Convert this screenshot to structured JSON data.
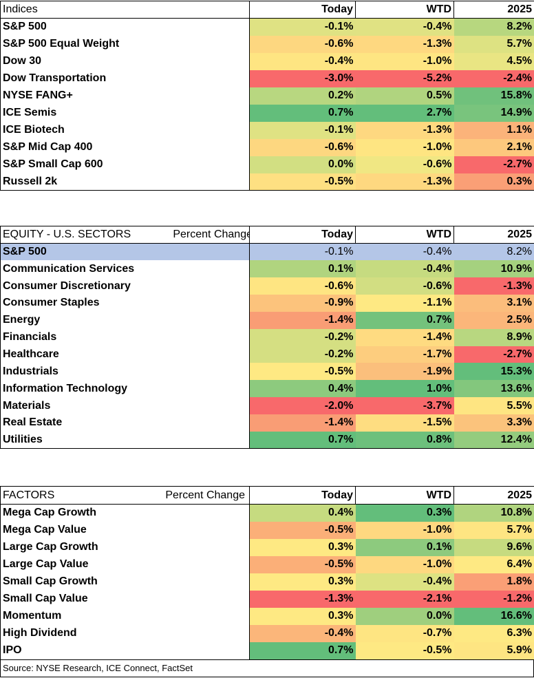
{
  "indices": {
    "header": {
      "label": "Indices",
      "today": "Today",
      "wtd": "WTD",
      "ytd": "2025"
    },
    "rows": [
      {
        "name": "S&P 500",
        "today": "-0.1%",
        "wtd": "-0.4%",
        "ytd": "8.2%",
        "c": [
          "#dfe283",
          "#e0e283",
          "#b7d77f"
        ]
      },
      {
        "name": "S&P 500 Equal Weight",
        "today": "-0.6%",
        "wtd": "-1.3%",
        "ytd": "5.7%",
        "c": [
          "#fdd780",
          "#fed880",
          "#dde282"
        ]
      },
      {
        "name": "Dow 30",
        "today": "-0.4%",
        "wtd": "-1.0%",
        "ytd": "4.5%",
        "c": [
          "#fee582",
          "#fee582",
          "#e9e583"
        ]
      },
      {
        "name": "Dow Transportation",
        "today": "-3.0%",
        "wtd": "-5.2%",
        "ytd": "-2.4%",
        "c": [
          "#f8696b",
          "#f8696b",
          "#f8696b"
        ]
      },
      {
        "name": "NYSE FANG+",
        "today": "0.2%",
        "wtd": "0.5%",
        "ytd": "15.8%",
        "c": [
          "#b8d780",
          "#b0d47f",
          "#70c17c"
        ]
      },
      {
        "name": "ICE Semis",
        "today": "0.7%",
        "wtd": "2.7%",
        "ytd": "14.9%",
        "c": [
          "#63be7b",
          "#63be7b",
          "#79c47d"
        ]
      },
      {
        "name": "ICE Biotech",
        "today": "-0.1%",
        "wtd": "-1.3%",
        "ytd": "1.1%",
        "c": [
          "#dfe283",
          "#fed880",
          "#fbb37a"
        ]
      },
      {
        "name": "S&P Mid Cap 400",
        "today": "-0.6%",
        "wtd": "-1.0%",
        "ytd": "2.1%",
        "c": [
          "#fdd780",
          "#fee582",
          "#fdc87d"
        ]
      },
      {
        "name": "S&P Small Cap 600",
        "today": "0.0%",
        "wtd": "-0.6%",
        "ytd": "-2.7%",
        "c": [
          "#d2df82",
          "#f0e783",
          "#f8696b"
        ]
      },
      {
        "name": "Russell 2k",
        "today": "-0.5%",
        "wtd": "-1.3%",
        "ytd": "0.3%",
        "c": [
          "#fee082",
          "#fed880",
          "#fa9f76"
        ]
      }
    ]
  },
  "sectors": {
    "header": {
      "label": "EQUITY - U.S. SECTORS",
      "label2": "Percent Change",
      "today": "Today",
      "wtd": "WTD",
      "ytd": "2025"
    },
    "highlight": {
      "name": "S&P 500",
      "today": "-0.1%",
      "wtd": "-0.4%",
      "ytd": "8.2%"
    },
    "highlight_color": "#b4c6e7",
    "rows": [
      {
        "name": "Communication Services",
        "today": "0.1%",
        "wtd": "-0.4%",
        "ytd": "10.9%",
        "c": [
          "#b0d47f",
          "#c6db80",
          "#a5d17f"
        ]
      },
      {
        "name": "Consumer Discretionary",
        "today": "-0.6%",
        "wtd": "-0.6%",
        "ytd": "-1.3%",
        "c": [
          "#fee582",
          "#d2de82",
          "#f8696b"
        ]
      },
      {
        "name": "Consumer Staples",
        "today": "-0.9%",
        "wtd": "-1.1%",
        "ytd": "3.1%",
        "c": [
          "#fcc37c",
          "#fee983",
          "#fbbd7c"
        ]
      },
      {
        "name": "Energy",
        "today": "-1.4%",
        "wtd": "0.7%",
        "ytd": "2.5%",
        "c": [
          "#f99d75",
          "#74c27c",
          "#fbb67a"
        ]
      },
      {
        "name": "Financials",
        "today": "-0.2%",
        "wtd": "-1.4%",
        "ytd": "8.9%",
        "c": [
          "#d5df82",
          "#fedb81",
          "#b8d780"
        ]
      },
      {
        "name": "Healthcare",
        "today": "-0.2%",
        "wtd": "-1.7%",
        "ytd": "-2.7%",
        "c": [
          "#d5df82",
          "#fdcd7e",
          "#f8696b"
        ]
      },
      {
        "name": "Industrials",
        "today": "-0.5%",
        "wtd": "-1.9%",
        "ytd": "15.3%",
        "c": [
          "#fee983",
          "#fbbf7c",
          "#63be7b"
        ]
      },
      {
        "name": "Information Technology",
        "today": "0.4%",
        "wtd": "1.0%",
        "ytd": "13.6%",
        "c": [
          "#8dca7e",
          "#63be7b",
          "#83c77d"
        ]
      },
      {
        "name": "Materials",
        "today": "-2.0%",
        "wtd": "-3.7%",
        "ytd": "5.5%",
        "c": [
          "#f8696b",
          "#f8696b",
          "#fee582"
        ]
      },
      {
        "name": "Real Estate",
        "today": "-1.4%",
        "wtd": "-1.5%",
        "ytd": "3.3%",
        "c": [
          "#f99d75",
          "#fedd81",
          "#fbc37c"
        ]
      },
      {
        "name": "Utilities",
        "today": "0.7%",
        "wtd": "0.8%",
        "ytd": "12.4%",
        "c": [
          "#63be7b",
          "#6dc07c",
          "#94cc7e"
        ]
      }
    ]
  },
  "factors": {
    "header": {
      "label": "FACTORS",
      "label2": "Percent Change",
      "today": "Today",
      "wtd": "WTD",
      "ytd": "2025"
    },
    "rows": [
      {
        "name": "Mega Cap Growth",
        "today": "0.4%",
        "wtd": "0.3%",
        "ytd": "10.8%",
        "c": [
          "#c6db80",
          "#63be7b",
          "#b0d47f"
        ]
      },
      {
        "name": "Mega Cap Value",
        "today": "-0.5%",
        "wtd": "-1.0%",
        "ytd": "5.7%",
        "c": [
          "#fbaf78",
          "#fed880",
          "#fee582"
        ]
      },
      {
        "name": "Large Cap Growth",
        "today": "0.3%",
        "wtd": "0.1%",
        "ytd": "9.6%",
        "c": [
          "#fee983",
          "#8dca7e",
          "#c6db80"
        ]
      },
      {
        "name": "Large Cap Value",
        "today": "-0.5%",
        "wtd": "-1.0%",
        "ytd": "6.4%",
        "c": [
          "#fbaf78",
          "#fed880",
          "#fee983"
        ]
      },
      {
        "name": "Small Cap Growth",
        "today": "0.3%",
        "wtd": "-0.4%",
        "ytd": "1.8%",
        "c": [
          "#fee983",
          "#dde282",
          "#fa9f76"
        ]
      },
      {
        "name": "Small Cap Value",
        "today": "-1.3%",
        "wtd": "-2.1%",
        "ytd": "-1.2%",
        "c": [
          "#f8696b",
          "#f8696b",
          "#f8696b"
        ]
      },
      {
        "name": "Momentum",
        "today": "0.3%",
        "wtd": "0.0%",
        "ytd": "16.6%",
        "c": [
          "#fee983",
          "#9fcf7e",
          "#63be7b"
        ]
      },
      {
        "name": "High Dividend",
        "today": "-0.4%",
        "wtd": "-0.7%",
        "ytd": "6.3%",
        "c": [
          "#fbb67a",
          "#fee582",
          "#fee983"
        ]
      },
      {
        "name": "IPO",
        "today": "0.7%",
        "wtd": "-0.5%",
        "ytd": "5.9%",
        "c": [
          "#63be7b",
          "#fee983",
          "#fee582"
        ]
      }
    ]
  },
  "source": "Source: NYSE Research, ICE Connect, FactSet"
}
